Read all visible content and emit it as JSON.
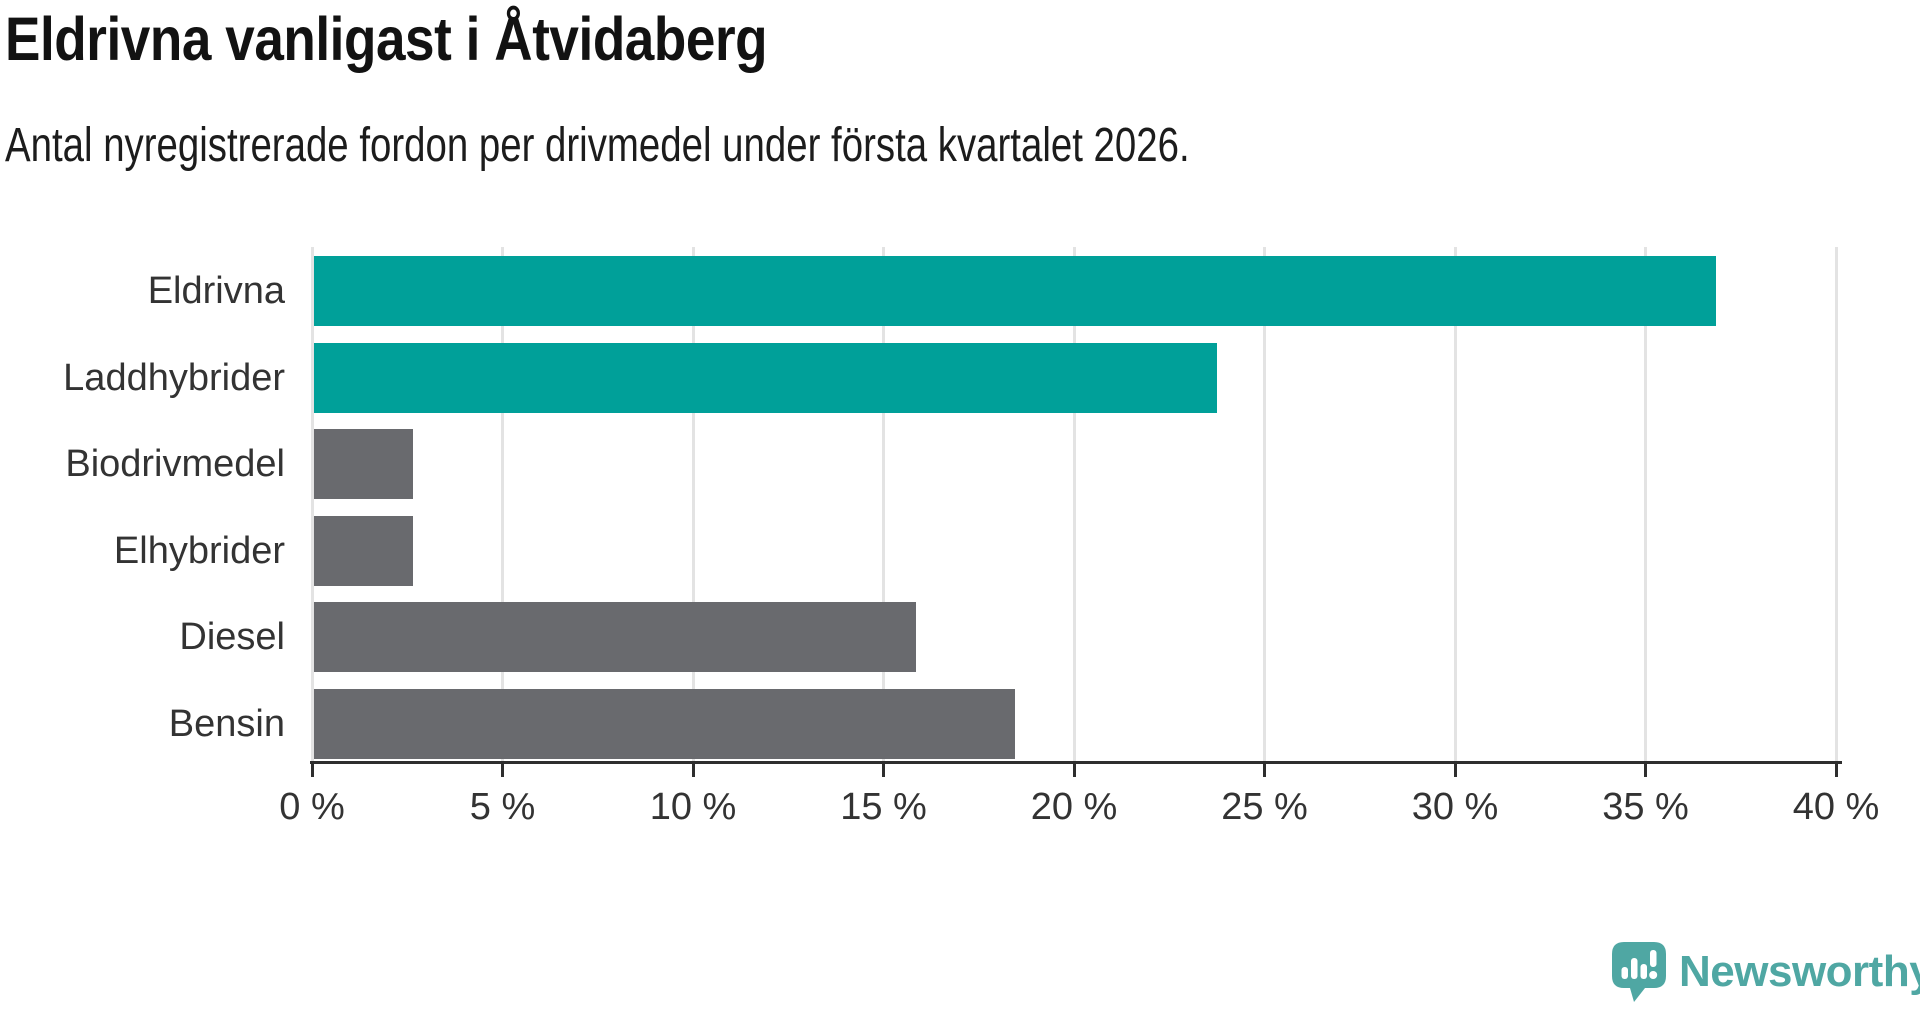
{
  "chart_data": {
    "type": "bar",
    "orientation": "horizontal",
    "title": "Eldrivna vanligast i Åtvidaberg",
    "subtitle": "Antal nyregistrerade fordon per drivmedel under första kvartalet 2026.",
    "categories": [
      "Eldrivna",
      "Laddhybrider",
      "Biodrivmedel",
      "Elhybrider",
      "Diesel",
      "Bensin"
    ],
    "values": [
      36.8,
      23.7,
      2.6,
      2.6,
      15.8,
      18.4
    ],
    "unit": "%",
    "bar_colors": [
      "#00A099",
      "#00A099",
      "#696A6E",
      "#696A6E",
      "#696A6E",
      "#696A6E"
    ],
    "xlim": [
      0,
      40
    ],
    "x_ticks": [
      0,
      5,
      10,
      15,
      20,
      25,
      30,
      35,
      40
    ],
    "x_tick_labels": [
      "0 %",
      "5 %",
      "10 %",
      "15 %",
      "20 %",
      "25 %",
      "30 %",
      "35 %",
      "40 %"
    ],
    "grid": "vertical-only",
    "legend": "none",
    "colors": {
      "accent_teal": "#00A099",
      "neutral_gray": "#696A6E",
      "gridline": "#E3E3E3",
      "axis": "#2E2E2E",
      "text": "#333333",
      "title_text": "#121212"
    }
  },
  "branding": {
    "logo_text": "Newsworthy",
    "logo_color": "#4FA7A3"
  }
}
